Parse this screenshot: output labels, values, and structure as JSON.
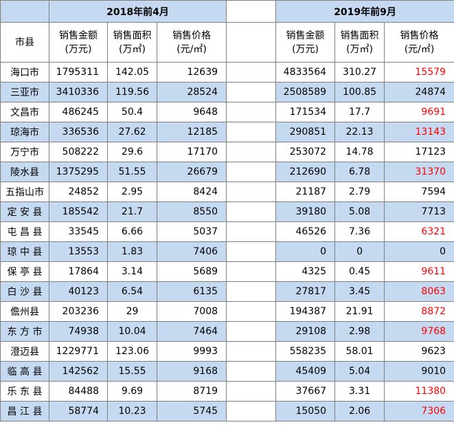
{
  "headers": {
    "group_2018": "2018年前4月",
    "group_2019": "2019年前9月",
    "city": "市县",
    "amount": "销售金额\n(万元)",
    "area": "销售面积\n(万㎡)",
    "price": "销售价格\n(元/㎡)"
  },
  "rows": [
    {
      "city": "海口市",
      "a18": "1795311",
      "m18": "142.05",
      "p18": "12639",
      "a19": "4833564",
      "m19": "310.27",
      "p19": "15579",
      "p19_red": true
    },
    {
      "city": "三亚市",
      "a18": "3410336",
      "m18": "119.56",
      "p18": "28524",
      "a19": "2508589",
      "m19": "100.85",
      "p19": "24874",
      "p19_red": false
    },
    {
      "city": "文昌市",
      "a18": "486245",
      "m18": "50.4",
      "p18": "9648",
      "a19": "171534",
      "m19": "17.7",
      "p19": "9691",
      "p19_red": true
    },
    {
      "city": "琼海市",
      "a18": "336536",
      "m18": "27.62",
      "p18": "12185",
      "a19": "290851",
      "m19": "22.13",
      "p19": "13143",
      "p19_red": true
    },
    {
      "city": "万宁市",
      "a18": "508222",
      "m18": "29.6",
      "p18": "17170",
      "a19": "253072",
      "m19": "14.78",
      "p19": "17123",
      "p19_red": false
    },
    {
      "city": "陵水县",
      "a18": "1375295",
      "m18": "51.55",
      "p18": "26679",
      "a19": "212690",
      "m19": "6.78",
      "p19": "31370",
      "p19_red": true
    },
    {
      "city": "五指山市",
      "a18": "24852",
      "m18": "2.95",
      "p18": "8424",
      "a19": "21187",
      "m19": "2.79",
      "p19": "7594",
      "p19_red": false
    },
    {
      "city": "定 安 县",
      "a18": "185542",
      "m18": "21.7",
      "p18": "8550",
      "a19": "39180",
      "m19": "5.08",
      "p19": "7713",
      "p19_red": false
    },
    {
      "city": "屯 昌 县",
      "a18": "33545",
      "m18": "6.66",
      "p18": "5037",
      "a19": "46526",
      "m19": "7.36",
      "p19": "6321",
      "p19_red": true
    },
    {
      "city": "琼 中 县",
      "a18": "13553",
      "m18": "1.83",
      "p18": "7406",
      "a19": "0",
      "m19": "0",
      "p19": "0",
      "p19_red": false
    },
    {
      "city": "保 亭 县",
      "a18": "17864",
      "m18": "3.14",
      "p18": "5689",
      "a19": "4325",
      "m19": "0.45",
      "p19": "9611",
      "p19_red": true
    },
    {
      "city": "白 沙 县",
      "a18": "40123",
      "m18": "6.54",
      "p18": "6135",
      "a19": "27817",
      "m19": "3.45",
      "p19": "8063",
      "p19_red": true
    },
    {
      "city": "儋州县",
      "a18": "203236",
      "m18": "29",
      "p18": "7008",
      "a19": "194387",
      "m19": "21.91",
      "p19": "8872",
      "p19_red": true
    },
    {
      "city": "东 方 市",
      "a18": "74938",
      "m18": "10.04",
      "p18": "7464",
      "a19": "29108",
      "m19": "2.98",
      "p19": "9768",
      "p19_red": true
    },
    {
      "city": "澄迈县",
      "a18": "1229771",
      "m18": "123.06",
      "p18": "9993",
      "a19": "558235",
      "m19": "58.01",
      "p19": "9623",
      "p19_red": false
    },
    {
      "city": "临 高 县",
      "a18": "142562",
      "m18": "15.55",
      "p18": "9168",
      "a19": "45409",
      "m19": "5.04",
      "p19": "9010",
      "p19_red": false
    },
    {
      "city": "乐 东 县",
      "a18": "84488",
      "m18": "9.69",
      "p18": "8719",
      "a19": "37667",
      "m19": "3.31",
      "p19": "11380",
      "p19_red": true
    },
    {
      "city": "昌 江 县",
      "a18": "58774",
      "m18": "10.23",
      "p18": "5745",
      "a19": "15050",
      "m19": "2.06",
      "p19": "7306",
      "p19_red": true
    }
  ],
  "colors": {
    "header_fill": "#c5d9f1",
    "stripe_fill": "#c5d9f1",
    "highlight_text": "#ff0000",
    "grid": "#7f7f7f"
  }
}
